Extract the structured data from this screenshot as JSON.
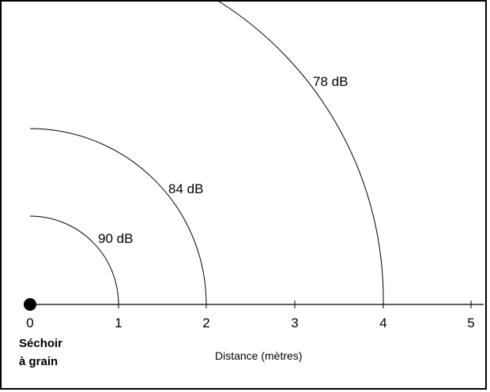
{
  "source": {
    "label_line1": "Séchoir",
    "label_line2": "à grain"
  },
  "axis": {
    "title": "Distance (mètres)",
    "ticks": [
      "0",
      "1",
      "2",
      "3",
      "4",
      "5"
    ]
  },
  "rings": [
    {
      "radius_m": 1,
      "label": "90 dB"
    },
    {
      "radius_m": 2,
      "label": "84 dB"
    },
    {
      "radius_m": 4,
      "label": "78 dB"
    }
  ]
}
